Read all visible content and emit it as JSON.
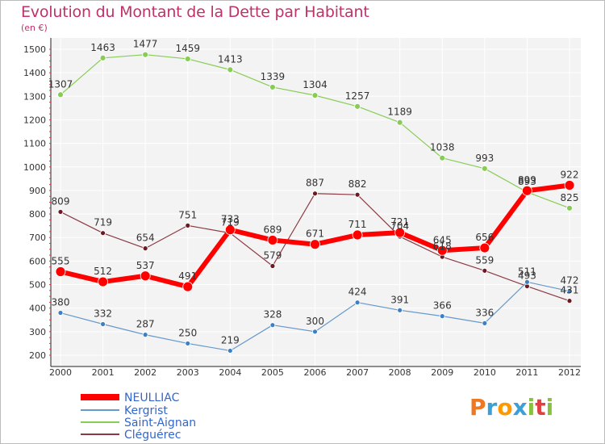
{
  "chart_data": {
    "type": "line",
    "title": "Evolution du Montant de la Dette par Habitant",
    "subtitle": "(en €)",
    "x": [
      "2000",
      "2001",
      "2002",
      "2003",
      "2004",
      "2005",
      "2006",
      "2007",
      "2008",
      "2009",
      "2010",
      "2011",
      "2012"
    ],
    "ylim": [
      200,
      1500
    ],
    "yticks": [
      200,
      300,
      400,
      500,
      600,
      700,
      800,
      900,
      1000,
      1100,
      1200,
      1300,
      1400,
      1500
    ],
    "grid": true,
    "legend_position": "bottom-left",
    "series": [
      {
        "name": "Saint-Aignan",
        "color": "#88cc55",
        "point_color": "#88cc55",
        "width": 1.2,
        "radius": 3.5,
        "values": [
          1307,
          1463,
          1477,
          1459,
          1413,
          1339,
          1304,
          1257,
          1189,
          1038,
          993,
          893,
          825
        ]
      },
      {
        "name": "Cléguérec",
        "color": "#8b3a44",
        "point_color": "#6b1a22",
        "width": 1.2,
        "radius": 3,
        "values": [
          809,
          719,
          654,
          751,
          719,
          579,
          887,
          882,
          704,
          618,
          559,
          493,
          431
        ]
      },
      {
        "name": "Kergrist",
        "color": "#6699cc",
        "point_color": "#3d7fc4",
        "width": 1.2,
        "radius": 3,
        "values": [
          380,
          332,
          287,
          250,
          219,
          328,
          300,
          424,
          391,
          366,
          336,
          511,
          472
        ]
      },
      {
        "name": "NEULLIAC",
        "color": "#ff0000",
        "point_color": "#ff0000",
        "width": 6,
        "radius": 6,
        "values": [
          555,
          512,
          537,
          491,
          733,
          689,
          671,
          711,
          721,
          645,
          656,
          899,
          922
        ]
      }
    ]
  },
  "brand": {
    "letters": [
      "P",
      "r",
      "o",
      "x",
      "i",
      "t",
      "i"
    ],
    "colors": [
      "#f07820",
      "#3aa0d8",
      "#ff9900",
      "#3aa0d8",
      "#88c040",
      "#e04040",
      "#88c040"
    ]
  }
}
